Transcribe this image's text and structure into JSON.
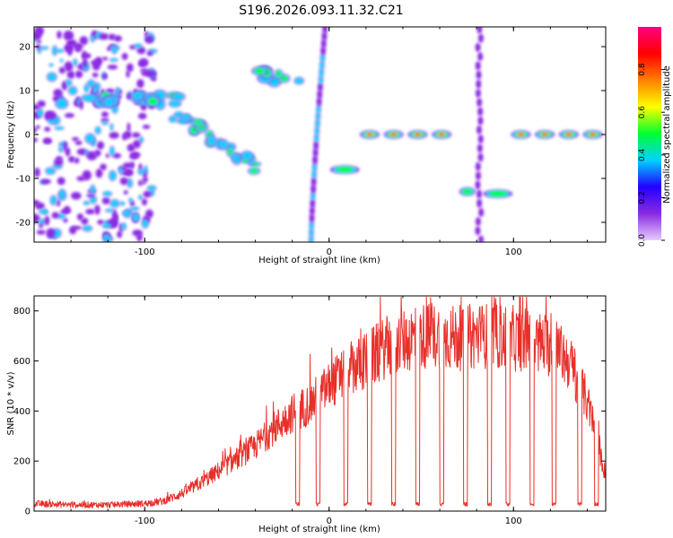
{
  "title": "S196.2026.093.11.32.C21",
  "chart_data": [
    {
      "type": "heatmap",
      "xlabel": "Height of straight line (km)",
      "ylabel": "Frequency (Hz)",
      "xlim": [
        -160,
        150
      ],
      "ylim": [
        -24.5,
        24.5
      ],
      "xticks": [
        -100,
        0,
        100
      ],
      "xtick_labels": [
        "-100",
        "0",
        "100"
      ],
      "yticks": [
        -20,
        -10,
        0,
        10,
        20
      ],
      "ytick_labels": [
        "-20",
        "-10",
        "0",
        "10",
        "20"
      ],
      "colorbar": {
        "label": "Normalized spectral amplitude",
        "range": [
          0,
          1
        ],
        "ticks": [
          0.0,
          0.2,
          0.4,
          0.6,
          0.8
        ],
        "tick_labels": [
          "0.0",
          "0.2",
          "0.4",
          "0.6",
          "0.8"
        ],
        "colors": [
          "#e6ccff",
          "#8a2be2",
          "#2200ff",
          "#00d2ff",
          "#00ff30",
          "#ffff00",
          "#ff8000",
          "#ff0000",
          "#ff0080"
        ]
      },
      "features": [
        {
          "name": "scattered-noise-left",
          "x": [
            -160,
            -95
          ],
          "y": [
            -24,
            24
          ],
          "amplitude": 0.2
        },
        {
          "name": "band-8hz",
          "x": [
            -150,
            -80
          ],
          "y": 8,
          "amplitude": 0.45
        },
        {
          "name": "descending-streak",
          "x": [
            -85,
            -40
          ],
          "y_start": 5,
          "y_end": -7,
          "amplitude": 0.5
        },
        {
          "name": "cluster-13hz",
          "x": [
            -38,
            -15
          ],
          "y": 13.5,
          "amplitude": 0.55
        },
        {
          "name": "arc-near-zero",
          "x": [
            -15,
            0
          ],
          "y": [
            -24,
            24
          ],
          "amplitude": 0.3
        },
        {
          "name": "blob-minus8",
          "x": [
            2,
            15
          ],
          "y": -8,
          "amplitude": 0.6
        },
        {
          "name": "line-0hz-a",
          "x": [
            18,
            72
          ],
          "y": 0,
          "amplitude": 0.95
        },
        {
          "name": "blob-minus13-a",
          "x": [
            72,
            78
          ],
          "y": -13,
          "amplitude": 0.5
        },
        {
          "name": "vertical-streak-80",
          "x": [
            78,
            85
          ],
          "y": [
            -24,
            24
          ],
          "amplitude": 0.25
        },
        {
          "name": "blob-minus13-b",
          "x": [
            85,
            98
          ],
          "y": -13.5,
          "amplitude": 0.55
        },
        {
          "name": "line-0hz-b",
          "x": [
            100,
            150
          ],
          "y": 0,
          "amplitude": 0.95
        }
      ]
    },
    {
      "type": "line",
      "xlabel": "Height of straight line (km)",
      "ylabel": "SNR (10 * v/v)",
      "xlim": [
        -160,
        150
      ],
      "ylim": [
        0,
        860
      ],
      "xticks": [
        -100,
        0,
        100
      ],
      "xtick_labels": [
        "-100",
        "0",
        "100"
      ],
      "yticks": [
        0,
        200,
        400,
        600,
        800
      ],
      "ytick_labels": [
        "0",
        "200",
        "400",
        "600",
        "800"
      ],
      "series": [
        {
          "name": "SNR",
          "color": "#e8302a",
          "x": [
            -160,
            -140,
            -120,
            -100,
            -90,
            -80,
            -70,
            -60,
            -50,
            -40,
            -30,
            -20,
            -10,
            0,
            10,
            20,
            30,
            40,
            50,
            60,
            70,
            80,
            90,
            100,
            110,
            120,
            130,
            140,
            150
          ],
          "y": [
            30,
            25,
            25,
            30,
            40,
            70,
            110,
            160,
            210,
            260,
            330,
            390,
            430,
            500,
            560,
            600,
            650,
            680,
            700,
            700,
            690,
            700,
            700,
            690,
            680,
            660,
            600,
            440,
            140
          ],
          "dropouts": [
            -17,
            -6,
            9,
            22,
            35,
            48,
            61,
            74,
            87,
            97,
            110,
            122,
            136,
            145
          ]
        }
      ]
    }
  ]
}
